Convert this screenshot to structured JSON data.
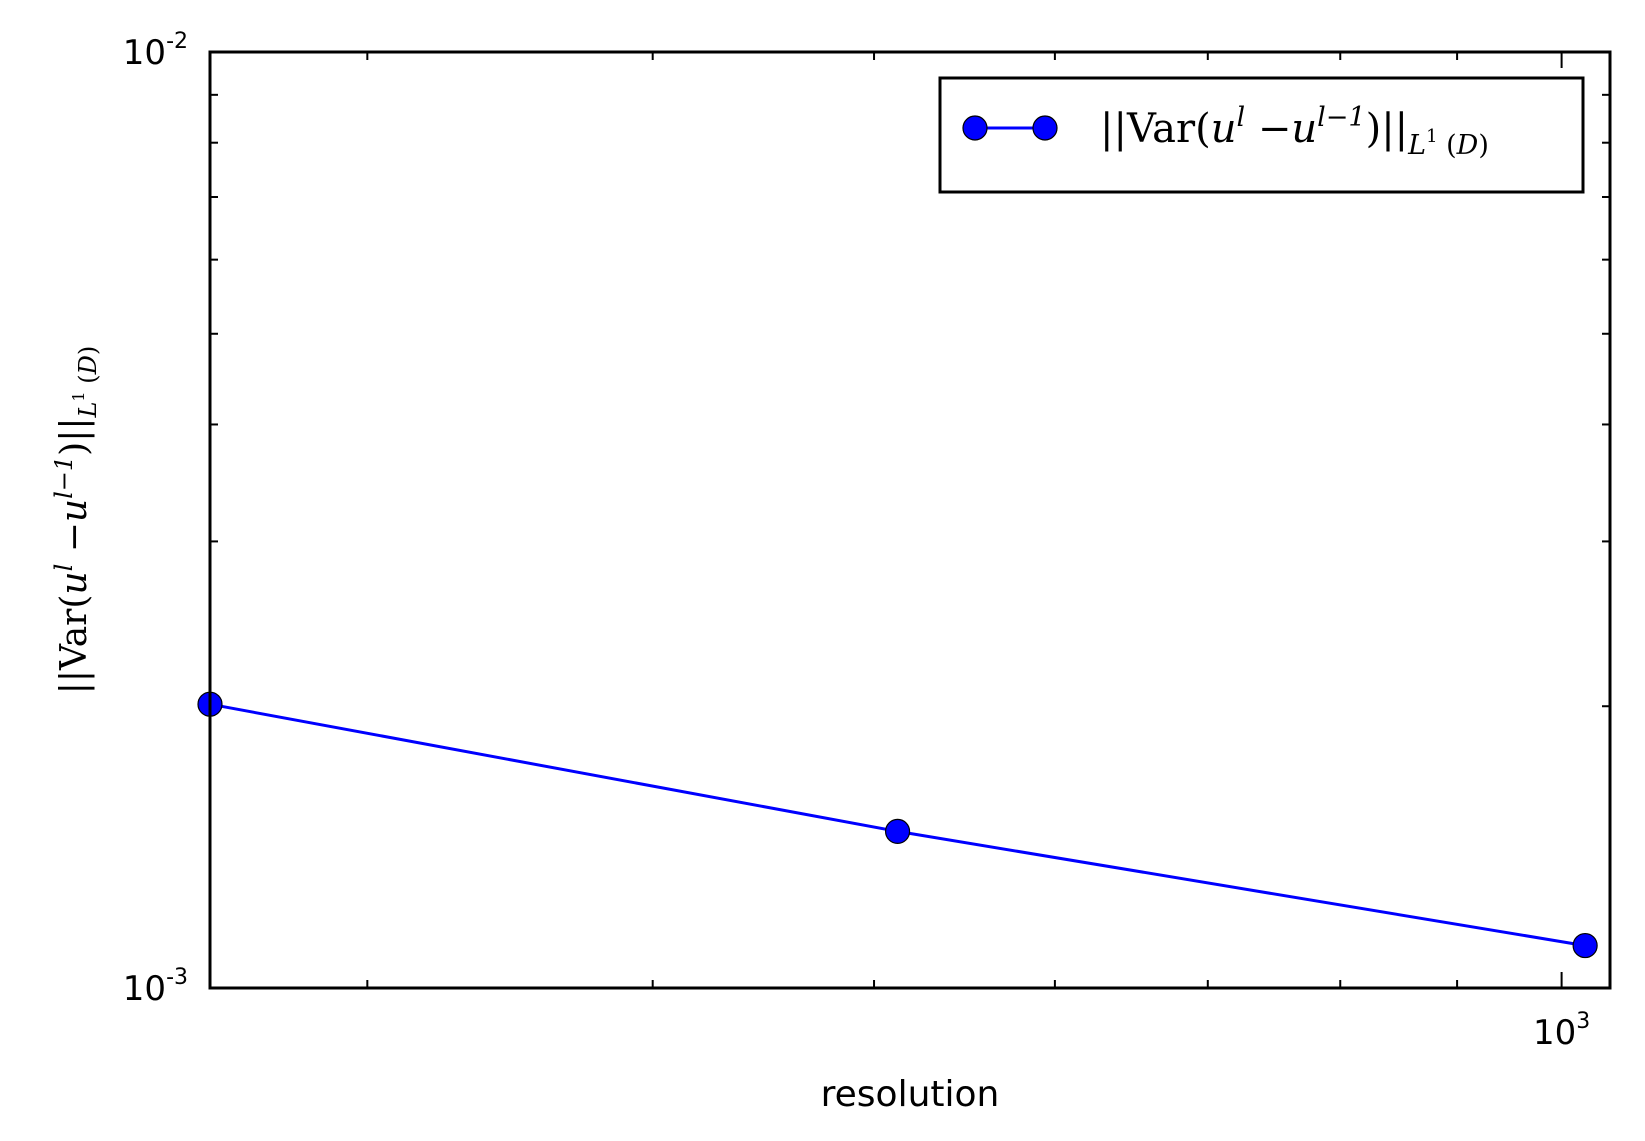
{
  "chart_data": {
    "type": "line",
    "xscale": "log",
    "yscale": "log",
    "xlim": [
      256,
      1050
    ],
    "ylim": [
      0.001,
      0.01
    ],
    "xlabel": "resolution",
    "ylabel": "||Var(u^l − u^(l−1))||_L^1 (D)",
    "grid": false,
    "legend_position": "top-right",
    "x_tick_labels": [
      {
        "value": 1000,
        "base": "10",
        "exp": "3"
      }
    ],
    "y_tick_labels": [
      {
        "value": 0.01,
        "base": "10",
        "exp": "-2"
      },
      {
        "value": 0.001,
        "base": "10",
        "exp": "-3"
      }
    ],
    "series": [
      {
        "name": "||Var(u^l − u^(l−1))||_L^1 (D)",
        "color": "#0000ff",
        "marker": "circle",
        "x": [
          256,
          512,
          1024
        ],
        "y": [
          0.00201,
          0.00147,
          0.00111
        ]
      }
    ]
  }
}
